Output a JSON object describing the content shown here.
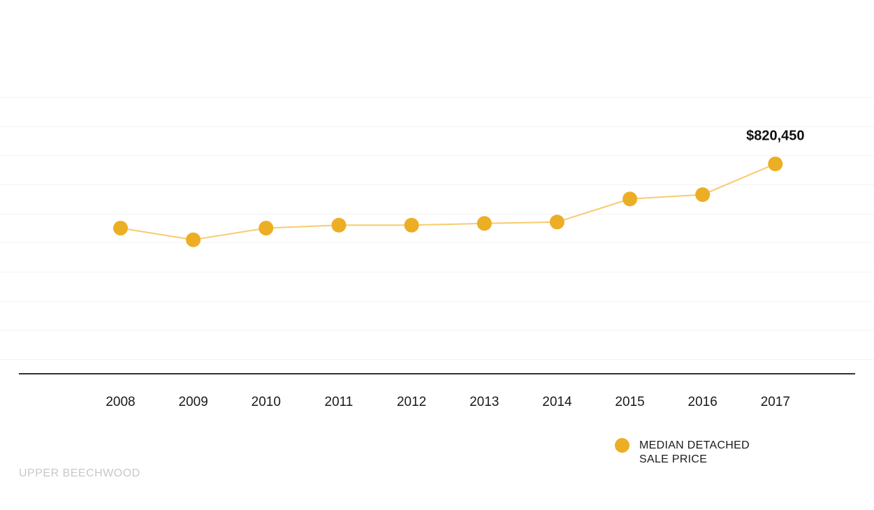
{
  "chart_data": {
    "type": "line",
    "title": "",
    "xlabel": "",
    "ylabel": "",
    "categories": [
      "2008",
      "2009",
      "2010",
      "2011",
      "2012",
      "2013",
      "2014",
      "2015",
      "2016",
      "2017"
    ],
    "series": [
      {
        "name": "MEDIAN DETACHED SALE PRICE",
        "values": [
          600000,
          560000,
          600000,
          610000,
          610000,
          616000,
          621000,
          700000,
          715000,
          820450
        ]
      }
    ],
    "ylim": [
      150000,
      1050000
    ],
    "y_gridlines": [
      150000,
      250000,
      350000,
      450000,
      550000,
      650000,
      750000,
      850000,
      950000,
      1050000
    ],
    "grid": true,
    "y_tick_labels_visible": false,
    "annotations": [
      {
        "category": "2017",
        "text": "$820,450"
      }
    ],
    "legend": {
      "position": "bottom-right",
      "lines": [
        "MEDIAN DETACHED",
        "SALE PRICE"
      ]
    },
    "colors": {
      "marker": "#ECAE24",
      "line": "#F8CA6E",
      "gridline": "#F3F3F3",
      "axis": "#333333"
    }
  },
  "caption": "UPPER BEECHWOOD"
}
